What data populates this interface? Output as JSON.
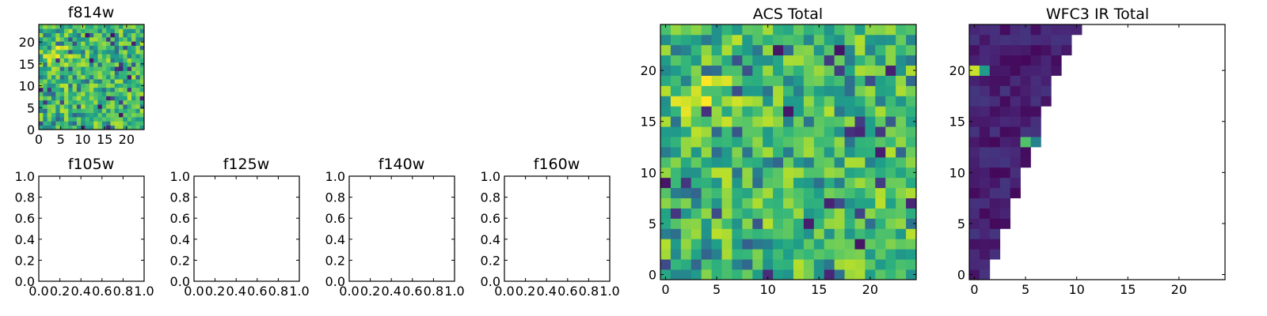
{
  "chart_data": [
    {
      "id": "f814w",
      "type": "heatmap",
      "title": "f814w",
      "grid_size": 25,
      "colormap": "viridis",
      "xlim": [
        0,
        24
      ],
      "ylim": [
        0,
        24
      ],
      "xticks": [
        "0",
        "5",
        "10",
        "15",
        "20"
      ],
      "yticks": [
        "0",
        "5",
        "10",
        "15",
        "20"
      ],
      "fill": "full",
      "seed": 11,
      "bright_region": {
        "cx": 4,
        "cy": 17,
        "r": 4
      }
    },
    {
      "id": "f105w",
      "type": "heatmap",
      "title": "f105w",
      "empty": true,
      "xlim": [
        0.0,
        1.0
      ],
      "ylim": [
        0.0,
        1.0
      ],
      "xticks": [
        "0.0",
        "0.2",
        "0.4",
        "0.6",
        "0.8",
        "1.0"
      ],
      "yticks": [
        "0.0",
        "0.2",
        "0.4",
        "0.6",
        "0.8",
        "1.0"
      ]
    },
    {
      "id": "f125w",
      "type": "heatmap",
      "title": "f125w",
      "empty": true,
      "xlim": [
        0.0,
        1.0
      ],
      "ylim": [
        0.0,
        1.0
      ],
      "xticks": [
        "0.0",
        "0.2",
        "0.4",
        "0.6",
        "0.8",
        "1.0"
      ],
      "yticks": [
        "0.0",
        "0.2",
        "0.4",
        "0.6",
        "0.8",
        "1.0"
      ]
    },
    {
      "id": "f140w",
      "type": "heatmap",
      "title": "f140w",
      "empty": true,
      "xlim": [
        0.0,
        1.0
      ],
      "ylim": [
        0.0,
        1.0
      ],
      "xticks": [
        "0.0",
        "0.2",
        "0.4",
        "0.6",
        "0.8",
        "1.0"
      ],
      "yticks": [
        "0.0",
        "0.2",
        "0.4",
        "0.6",
        "0.8",
        "1.0"
      ]
    },
    {
      "id": "f160w",
      "type": "heatmap",
      "title": "f160w",
      "empty": true,
      "xlim": [
        0.0,
        1.0
      ],
      "ylim": [
        0.0,
        1.0
      ],
      "xticks": [
        "0.0",
        "0.2",
        "0.4",
        "0.6",
        "0.8",
        "1.0"
      ],
      "yticks": [
        "0.0",
        "0.2",
        "0.4",
        "0.6",
        "0.8",
        "1.0"
      ]
    },
    {
      "id": "acs_total",
      "type": "heatmap",
      "title": "ACS Total",
      "grid_size": 25,
      "colormap": "viridis",
      "xlim": [
        -0.5,
        24.5
      ],
      "ylim": [
        -0.5,
        24.5
      ],
      "xticks": [
        "0",
        "5",
        "10",
        "15",
        "20"
      ],
      "yticks": [
        "0",
        "5",
        "10",
        "15",
        "20"
      ],
      "fill": "full",
      "seed": 11,
      "bright_region": {
        "cx": 4,
        "cy": 17,
        "r": 4
      }
    },
    {
      "id": "wfc3_ir_total",
      "type": "heatmap",
      "title": "WFC3 IR Total",
      "grid_size": 25,
      "colormap": "viridis",
      "xlim": [
        -0.5,
        24.5
      ],
      "ylim": [
        -0.5,
        24.5
      ],
      "xticks": [
        "0",
        "5",
        "10",
        "15",
        "20"
      ],
      "yticks": [
        "0",
        "5",
        "10",
        "15",
        "20"
      ],
      "fill": "triangle",
      "row_lengths": [
        2,
        2,
        3,
        3,
        3,
        4,
        4,
        4,
        5,
        5,
        5,
        6,
        6,
        6,
        7,
        7,
        7,
        8,
        8,
        8,
        9,
        9,
        10,
        10,
        11
      ],
      "seed": 29,
      "highlights": [
        {
          "x": 0,
          "y": 20,
          "v": 0.92
        },
        {
          "x": 1,
          "y": 20,
          "v": 0.55
        },
        {
          "x": 5,
          "y": 13,
          "v": 0.72
        },
        {
          "x": 6,
          "y": 13,
          "v": 0.45
        }
      ]
    }
  ]
}
